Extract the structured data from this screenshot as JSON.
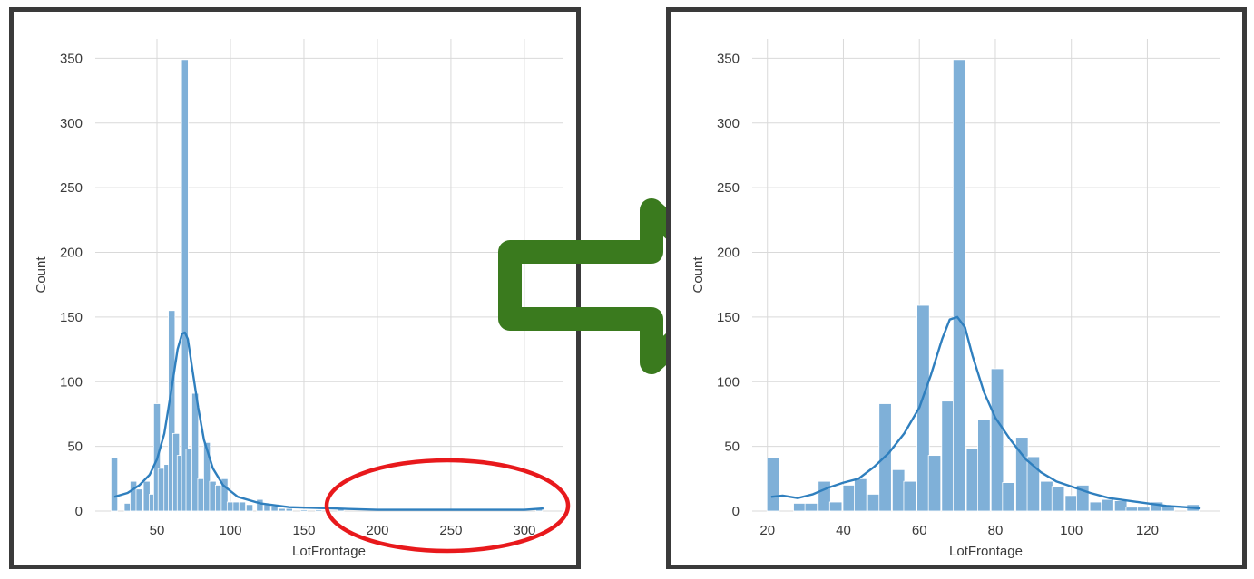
{
  "colors": {
    "bar_fill": "#7fb0d8",
    "bar_stroke": "#ffffff",
    "kde_line": "#2f7fbe",
    "grid": "#d9d9d9",
    "frame": "#3a3a3a",
    "arrow": "#3a7a1e",
    "highlight_ellipse": "#e8191c"
  },
  "arrow_icon": "right-arrow-icon",
  "chart_data": [
    {
      "type": "bar",
      "subtype": "histogram_with_kde",
      "title": "",
      "xlabel": "LotFrontage",
      "ylabel": "Count",
      "xlim": [
        8,
        326
      ],
      "ylim": [
        0,
        365
      ],
      "xticks": [
        50,
        100,
        150,
        200,
        250,
        300
      ],
      "yticks": [
        0,
        50,
        100,
        150,
        200,
        250,
        300,
        350
      ],
      "grid": true,
      "highlight": "outlier region circled (x ≈ 160–315)",
      "bin_width": 4.5,
      "bins": [
        {
          "x": 21,
          "count": 41
        },
        {
          "x": 30,
          "count": 6
        },
        {
          "x": 34,
          "count": 23
        },
        {
          "x": 38,
          "count": 17
        },
        {
          "x": 43,
          "count": 23
        },
        {
          "x": 47,
          "count": 13
        },
        {
          "x": 50,
          "count": 83
        },
        {
          "x": 53,
          "count": 33
        },
        {
          "x": 57,
          "count": 36
        },
        {
          "x": 60,
          "count": 155
        },
        {
          "x": 63,
          "count": 60
        },
        {
          "x": 66,
          "count": 43
        },
        {
          "x": 69,
          "count": 349
        },
        {
          "x": 72,
          "count": 48
        },
        {
          "x": 76,
          "count": 91
        },
        {
          "x": 80,
          "count": 25
        },
        {
          "x": 84,
          "count": 53
        },
        {
          "x": 88,
          "count": 23
        },
        {
          "x": 92,
          "count": 20
        },
        {
          "x": 96,
          "count": 25
        },
        {
          "x": 100,
          "count": 7
        },
        {
          "x": 104,
          "count": 7
        },
        {
          "x": 108,
          "count": 7
        },
        {
          "x": 113,
          "count": 5
        },
        {
          "x": 120,
          "count": 9
        },
        {
          "x": 125,
          "count": 5
        },
        {
          "x": 130,
          "count": 4
        },
        {
          "x": 135,
          "count": 2
        },
        {
          "x": 140,
          "count": 2
        },
        {
          "x": 150,
          "count": 1
        },
        {
          "x": 160,
          "count": 1
        },
        {
          "x": 175,
          "count": 2
        },
        {
          "x": 310,
          "count": 2
        }
      ],
      "kde": {
        "x": [
          21,
          30,
          38,
          45,
          50,
          55,
          60,
          64,
          67,
          69,
          71,
          74,
          78,
          82,
          88,
          95,
          105,
          120,
          140,
          170,
          200,
          250,
          300,
          313
        ],
        "y": [
          11,
          14,
          20,
          28,
          40,
          60,
          95,
          125,
          137,
          138,
          133,
          110,
          80,
          55,
          33,
          20,
          11,
          6,
          3,
          2,
          1,
          1,
          1,
          2
        ]
      }
    },
    {
      "type": "bar",
      "subtype": "histogram_with_kde",
      "title": "",
      "xlabel": "LotFrontage",
      "ylabel": "Count",
      "xlim": [
        16,
        139
      ],
      "ylim": [
        0,
        365
      ],
      "xticks": [
        20,
        40,
        60,
        80,
        100,
        120
      ],
      "yticks": [
        0,
        50,
        100,
        150,
        200,
        250,
        300,
        350
      ],
      "grid": true,
      "bin_width": 3.25,
      "bins": [
        {
          "x": 21.5,
          "count": 41
        },
        {
          "x": 28.5,
          "count": 6
        },
        {
          "x": 31.5,
          "count": 6
        },
        {
          "x": 35,
          "count": 23
        },
        {
          "x": 38,
          "count": 7
        },
        {
          "x": 41.5,
          "count": 20
        },
        {
          "x": 44.5,
          "count": 25
        },
        {
          "x": 48,
          "count": 13
        },
        {
          "x": 51,
          "count": 83
        },
        {
          "x": 54.5,
          "count": 32
        },
        {
          "x": 57.5,
          "count": 23
        },
        {
          "x": 61,
          "count": 159
        },
        {
          "x": 64,
          "count": 43
        },
        {
          "x": 67.5,
          "count": 85
        },
        {
          "x": 70.5,
          "count": 349
        },
        {
          "x": 74,
          "count": 48
        },
        {
          "x": 77,
          "count": 71
        },
        {
          "x": 80.5,
          "count": 110
        },
        {
          "x": 83.5,
          "count": 22
        },
        {
          "x": 87,
          "count": 57
        },
        {
          "x": 90,
          "count": 42
        },
        {
          "x": 93.5,
          "count": 23
        },
        {
          "x": 96.5,
          "count": 19
        },
        {
          "x": 100,
          "count": 12
        },
        {
          "x": 103,
          "count": 20
        },
        {
          "x": 106.5,
          "count": 7
        },
        {
          "x": 109.5,
          "count": 9
        },
        {
          "x": 113,
          "count": 8
        },
        {
          "x": 116,
          "count": 3
        },
        {
          "x": 119,
          "count": 3
        },
        {
          "x": 122.5,
          "count": 7
        },
        {
          "x": 125.5,
          "count": 4
        },
        {
          "x": 132,
          "count": 5
        }
      ],
      "kde": {
        "x": [
          21,
          24,
          28,
          32,
          36,
          40,
          44,
          48,
          52,
          56,
          60,
          63,
          66,
          68,
          70,
          72,
          74,
          77,
          80,
          84,
          88,
          92,
          96,
          100,
          105,
          110,
          115,
          120,
          125,
          130,
          134
        ],
        "y": [
          11,
          12,
          10,
          13,
          18,
          22,
          25,
          34,
          45,
          60,
          80,
          105,
          133,
          148,
          150,
          142,
          120,
          92,
          72,
          55,
          40,
          30,
          23,
          19,
          14,
          10,
          8,
          6,
          4,
          3,
          2
        ]
      }
    }
  ]
}
